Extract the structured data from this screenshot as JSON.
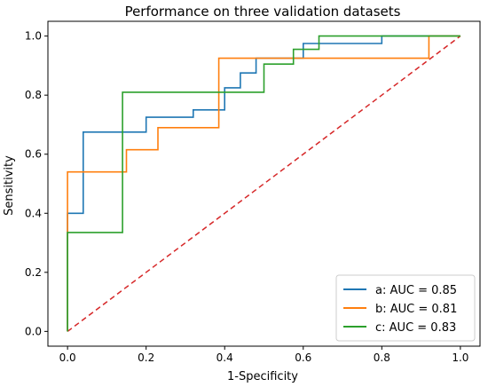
{
  "chart_data": {
    "type": "line",
    "title": "Performance on three validation datasets",
    "xlabel": "1-Specificity",
    "ylabel": "Sensitivity",
    "xlim": [
      -0.05,
      1.05
    ],
    "ylim": [
      -0.05,
      1.05
    ],
    "xticks": [
      "0.0",
      "0.2",
      "0.4",
      "0.6",
      "0.8",
      "1.0"
    ],
    "yticks": [
      "0.0",
      "0.2",
      "0.4",
      "0.6",
      "0.8",
      "1.0"
    ],
    "grid": false,
    "legend_position": "lower right",
    "series": [
      {
        "name": "a: AUC = 0.85",
        "color": "#1f77b4",
        "step": true,
        "x": [
          0.0,
          0.0,
          0.04,
          0.04,
          0.2,
          0.2,
          0.32,
          0.32,
          0.4,
          0.4,
          0.44,
          0.44,
          0.48,
          0.48,
          0.6,
          0.6,
          0.8,
          0.8,
          1.0
        ],
        "y": [
          0.0,
          0.4,
          0.4,
          0.675,
          0.675,
          0.725,
          0.725,
          0.75,
          0.75,
          0.825,
          0.825,
          0.875,
          0.875,
          0.925,
          0.925,
          0.975,
          0.975,
          1.0,
          1.0
        ]
      },
      {
        "name": "b: AUC = 0.81",
        "color": "#ff7f0e",
        "step": true,
        "x": [
          0.0,
          0.0,
          0.0,
          0.15,
          0.15,
          0.23,
          0.23,
          0.385,
          0.385,
          0.92,
          0.92,
          1.0
        ],
        "y": [
          0.0,
          0.33,
          0.54,
          0.54,
          0.615,
          0.615,
          0.69,
          0.69,
          0.925,
          0.925,
          1.0,
          1.0
        ]
      },
      {
        "name": "c: AUC = 0.83",
        "color": "#2ca02c",
        "step": true,
        "x": [
          0.0,
          0.0,
          0.14,
          0.14,
          0.5,
          0.5,
          0.575,
          0.575,
          0.64,
          0.64,
          1.0
        ],
        "y": [
          0.0,
          0.335,
          0.335,
          0.81,
          0.81,
          0.905,
          0.905,
          0.955,
          0.955,
          1.0,
          1.0
        ]
      },
      {
        "name": "",
        "color": "#d62728",
        "dashed": true,
        "x": [
          0.0,
          1.0
        ],
        "y": [
          0.0,
          1.0
        ]
      }
    ]
  }
}
